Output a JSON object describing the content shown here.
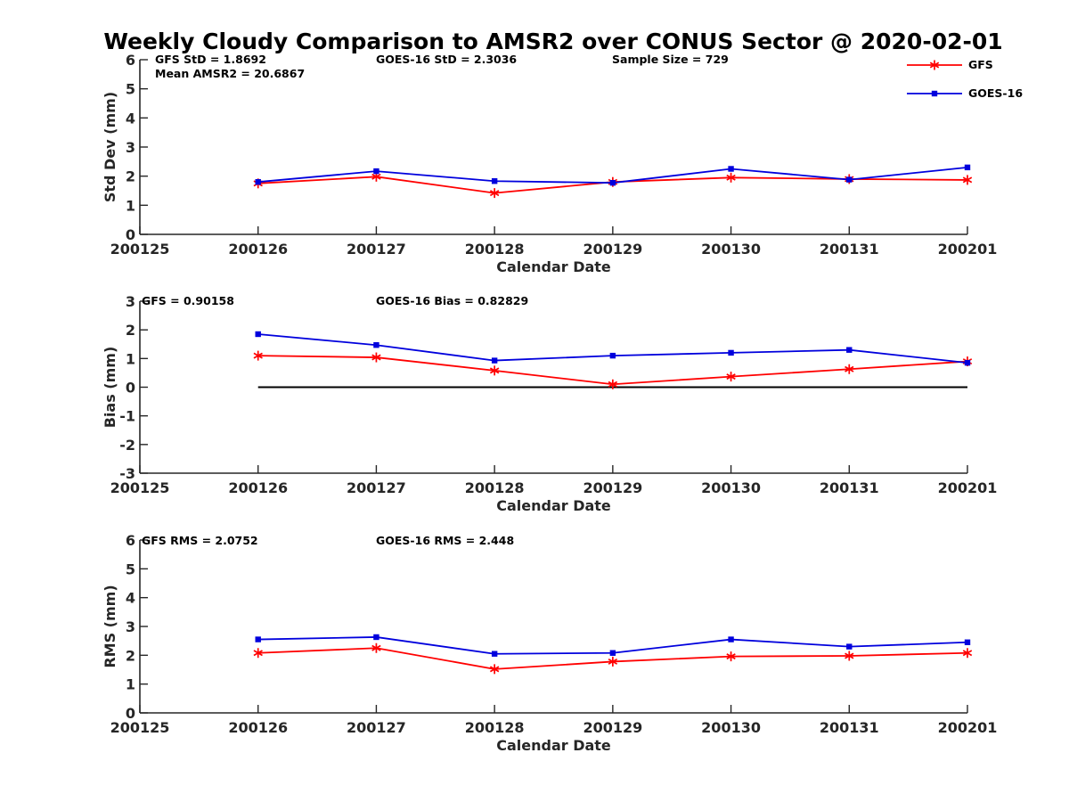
{
  "figure": {
    "title": "Weekly Cloudy Comparison to AMSR2 over CONUS Sector @ 2020-02-01",
    "legend": [
      {
        "label": "GFS",
        "color": "#ff0000",
        "marker": "asterisk"
      },
      {
        "label": "GOES-16",
        "color": "#0000dd",
        "marker": "square"
      }
    ]
  },
  "chart_data": [
    {
      "type": "line",
      "id": "stddev",
      "xlabel": "Calendar Date",
      "ylabel": "Std Dev (mm)",
      "categories": [
        "200125",
        "200126",
        "200127",
        "200128",
        "200129",
        "200130",
        "200131",
        "200201"
      ],
      "ylim": [
        0,
        6
      ],
      "yticks": [
        "0",
        "1",
        "2",
        "3",
        "4",
        "5",
        "6"
      ],
      "grid": false,
      "legend_position": "top-right",
      "series": [
        {
          "name": "GFS",
          "color": "#ff0000",
          "marker": "asterisk",
          "x": [
            "200126",
            "200127",
            "200128",
            "200129",
            "200130",
            "200131",
            "200201"
          ],
          "values": [
            1.75,
            1.98,
            1.42,
            1.8,
            1.95,
            1.9,
            1.87
          ]
        },
        {
          "name": "GOES-16",
          "color": "#0000dd",
          "marker": "square",
          "x": [
            "200126",
            "200127",
            "200128",
            "200129",
            "200130",
            "200131",
            "200201"
          ],
          "values": [
            1.8,
            2.17,
            1.83,
            1.77,
            2.25,
            1.88,
            2.3
          ]
        }
      ],
      "annotations": [
        "GFS StD = 1.8692",
        "GOES-16 StD = 2.3036",
        "Sample Size = 729",
        "Mean AMSR2 = 20.6867"
      ]
    },
    {
      "type": "line",
      "id": "bias",
      "xlabel": "Calendar Date",
      "ylabel": "Bias (mm)",
      "categories": [
        "200125",
        "200126",
        "200127",
        "200128",
        "200129",
        "200130",
        "200131",
        "200201"
      ],
      "ylim": [
        -3,
        3
      ],
      "yticks": [
        "-3",
        "-2",
        "-1",
        "0",
        "1",
        "2",
        "3"
      ],
      "grid": false,
      "zero_line": true,
      "series": [
        {
          "name": "GFS",
          "color": "#ff0000",
          "marker": "asterisk",
          "x": [
            "200126",
            "200127",
            "200128",
            "200129",
            "200130",
            "200131",
            "200201"
          ],
          "values": [
            1.1,
            1.04,
            0.58,
            0.1,
            0.37,
            0.63,
            0.9
          ]
        },
        {
          "name": "GOES-16",
          "color": "#0000dd",
          "marker": "square",
          "x": [
            "200126",
            "200127",
            "200128",
            "200129",
            "200130",
            "200131",
            "200201"
          ],
          "values": [
            1.85,
            1.47,
            0.93,
            1.1,
            1.2,
            1.3,
            0.85
          ]
        }
      ],
      "annotations": [
        "GFS = 0.90158",
        "GOES-16 Bias  = 0.82829"
      ]
    },
    {
      "type": "line",
      "id": "rms",
      "xlabel": "Calendar Date",
      "ylabel": "RMS (mm)",
      "categories": [
        "200125",
        "200126",
        "200127",
        "200128",
        "200129",
        "200130",
        "200131",
        "200201"
      ],
      "ylim": [
        0,
        6
      ],
      "yticks": [
        "0",
        "1",
        "2",
        "3",
        "4",
        "5",
        "6"
      ],
      "grid": false,
      "series": [
        {
          "name": "GFS",
          "color": "#ff0000",
          "marker": "asterisk",
          "x": [
            "200126",
            "200127",
            "200128",
            "200129",
            "200130",
            "200131",
            "200201"
          ],
          "values": [
            2.08,
            2.25,
            1.52,
            1.78,
            1.96,
            1.98,
            2.08
          ]
        },
        {
          "name": "GOES-16",
          "color": "#0000dd",
          "marker": "square",
          "x": [
            "200126",
            "200127",
            "200128",
            "200129",
            "200130",
            "200131",
            "200201"
          ],
          "values": [
            2.55,
            2.63,
            2.05,
            2.08,
            2.55,
            2.3,
            2.45
          ]
        }
      ],
      "annotations": [
        "GFS RMS = 2.0752",
        "GOES-16 RMS = 2.448"
      ]
    }
  ]
}
